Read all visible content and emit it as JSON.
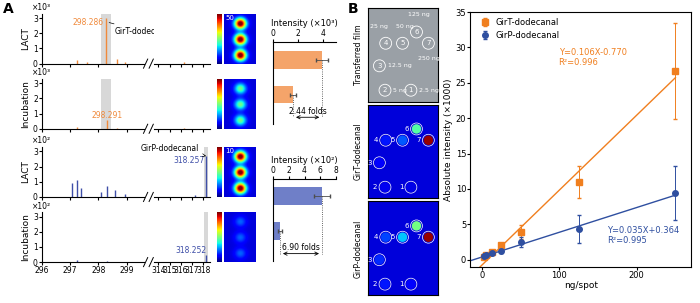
{
  "panel_labels": [
    "A",
    "B"
  ],
  "images": {
    "A_scale_max": [
      50,
      null,
      10,
      null
    ],
    "B_film_title": "Transferred film",
    "B_row_titles": [
      "GirT-dodecanal",
      "GirP-dodecanal"
    ],
    "B_spot_numbers": [
      "1",
      "2",
      "3",
      "4",
      "5",
      "6",
      "7"
    ],
    "B_amount_labels": [
      "2.5 ng",
      "5 ng",
      "12.5 ng",
      "25 ng",
      "50 ng",
      "125 ng",
      "250 ng"
    ]
  },
  "chart_data": [
    {
      "type": "stem",
      "ylabel": "LACT",
      "axis_note": "×10³",
      "color": "#f08a3c",
      "ylim": [
        0,
        3.3
      ],
      "yticks": [
        0,
        1,
        2,
        3
      ],
      "x_segments": [
        {
          "xlim": [
            296,
            299.6
          ],
          "xticks": [
            296,
            297,
            298,
            299
          ]
        },
        {
          "xlim": [
            313.6,
            318.6
          ],
          "xticks": [
            314,
            315,
            316,
            317,
            318
          ]
        }
      ],
      "x": [
        297.25,
        297.6,
        298.286,
        298.65,
        298.95,
        316.3
      ],
      "values": [
        0.25,
        0.1,
        3.0,
        0.3,
        0.12,
        0.08
      ],
      "highlight_range": [
        298.1,
        298.45
      ],
      "peak_label": {
        "x": 298.286,
        "text": "298.286"
      },
      "annotation": "GirT-dodecanal",
      "tick_labels": "y"
    },
    {
      "type": "stem",
      "ylabel": "Incubation",
      "axis_note": "×10³",
      "color": "#f08a3c",
      "ylim": [
        0,
        3.3
      ],
      "yticks": [
        0,
        1,
        2,
        3
      ],
      "x_segments": [
        {
          "xlim": [
            296,
            299.6
          ],
          "xticks": [
            296,
            297,
            298,
            299
          ]
        },
        {
          "xlim": [
            313.6,
            318.6
          ],
          "xticks": [
            314,
            315,
            316,
            317,
            318
          ]
        }
      ],
      "x": [
        297.25,
        298.291,
        298.65,
        316.3
      ],
      "values": [
        0.1,
        0.55,
        0.08,
        0.05
      ],
      "highlight_range": [
        298.1,
        298.45
      ],
      "peak_label": {
        "x": 298.291,
        "text": "298.291"
      },
      "tick_labels": "y"
    },
    {
      "type": "stem",
      "ylabel": "LACT",
      "axis_note": "×10²",
      "color": "#3f4fa8",
      "ylim": [
        0,
        3.3
      ],
      "yticks": [
        0,
        1,
        2,
        3
      ],
      "x_segments": [
        {
          "xlim": [
            296,
            299.6
          ],
          "xticks": [
            296,
            297,
            298,
            299
          ]
        },
        {
          "xlim": [
            313.6,
            318.6
          ],
          "xticks": [
            314,
            315,
            316,
            317,
            318
          ]
        }
      ],
      "x": [
        297.05,
        297.25,
        297.4,
        298.1,
        298.3,
        298.6,
        298.95,
        317.3,
        318.257
      ],
      "values": [
        0.9,
        1.1,
        0.6,
        0.35,
        0.7,
        0.45,
        0.2,
        0.15,
        2.7
      ],
      "highlight_range": [
        318.05,
        318.45
      ],
      "peak_label": {
        "x": 318.257,
        "text": "318.257"
      },
      "annotation": "GirP-dodecanal",
      "tick_labels": "y"
    },
    {
      "type": "stem",
      "ylabel": "Incubation",
      "axis_note": "×10²",
      "color": "#3f4fa8",
      "ylim": [
        0,
        3.3
      ],
      "yticks": [
        0,
        1,
        2,
        3
      ],
      "x_segments": [
        {
          "xlim": [
            296,
            299.6
          ],
          "xticks": [
            296,
            297,
            298,
            299
          ]
        },
        {
          "xlim": [
            313.6,
            318.6
          ],
          "xticks": [
            314,
            315,
            316,
            317,
            318
          ]
        }
      ],
      "x": [
        297.25,
        298.3,
        318.252
      ],
      "values": [
        0.15,
        0.1,
        0.45
      ],
      "highlight_range": [
        318.05,
        318.45
      ],
      "peak_label": {
        "x": 318.252,
        "text": "318.252"
      }
    },
    {
      "type": "bar",
      "orientation": "horizontal",
      "title": "Intensity (×10³)",
      "categories": [
        null,
        null
      ],
      "values": [
        3.9,
        1.6
      ],
      "errors": [
        0.5,
        0.25
      ],
      "color": "#f4a46a",
      "xlim": [
        0,
        5
      ],
      "xticks": [
        0,
        2,
        4
      ],
      "annotation": "2.44 folds",
      "tick_labels": "x"
    },
    {
      "type": "bar",
      "orientation": "horizontal",
      "title": "Intensity (×10²)",
      "categories": [
        null,
        null
      ],
      "values": [
        6.2,
        0.9
      ],
      "errors": [
        1.0,
        0.3
      ],
      "color": "#6f7fc8",
      "xlim": [
        0,
        8
      ],
      "xticks": [
        0,
        2,
        4,
        6,
        8
      ],
      "annotation": "6.90 folds",
      "tick_labels": "x"
    },
    {
      "type": "scatter",
      "xlabel": "ng/spot",
      "ylabel": "Absolute intensity (×1000)",
      "x": [
        2.5,
        5,
        12.5,
        25,
        50,
        125,
        250
      ],
      "xlim": [
        -15,
        270
      ],
      "xticks": [
        0,
        100,
        200
      ],
      "ylim": [
        -1,
        35
      ],
      "yticks": [
        0,
        5,
        10,
        15,
        20,
        25,
        30,
        35
      ],
      "legend": "upper left",
      "series": [
        {
          "name": "GirT-dodecanal",
          "color": "#f07f1f",
          "marker": "square",
          "values": [
            0.4,
            0.6,
            1.1,
            2.0,
            3.9,
            11.0,
            26.7
          ],
          "errors": [
            0.1,
            0.1,
            0.2,
            0.4,
            1.0,
            2.3,
            6.8
          ],
          "fit": {
            "slope": 0.106,
            "intercept": -0.77
          },
          "equation": "Y=0.106X-0.770",
          "r2_label": "R²=0.996"
        },
        {
          "name": "GirP-dodecanal",
          "color": "#2f4fa0",
          "marker": "circle",
          "values": [
            0.5,
            0.7,
            0.9,
            1.2,
            2.5,
            4.3,
            9.4
          ],
          "errors": [
            0.1,
            0.1,
            0.2,
            0.3,
            0.7,
            2.0,
            3.8
          ],
          "fit": {
            "slope": 0.035,
            "intercept": 0.364
          },
          "equation": "Y=0.035X+0.364",
          "r2_label": "R²=0.995"
        }
      ]
    }
  ]
}
